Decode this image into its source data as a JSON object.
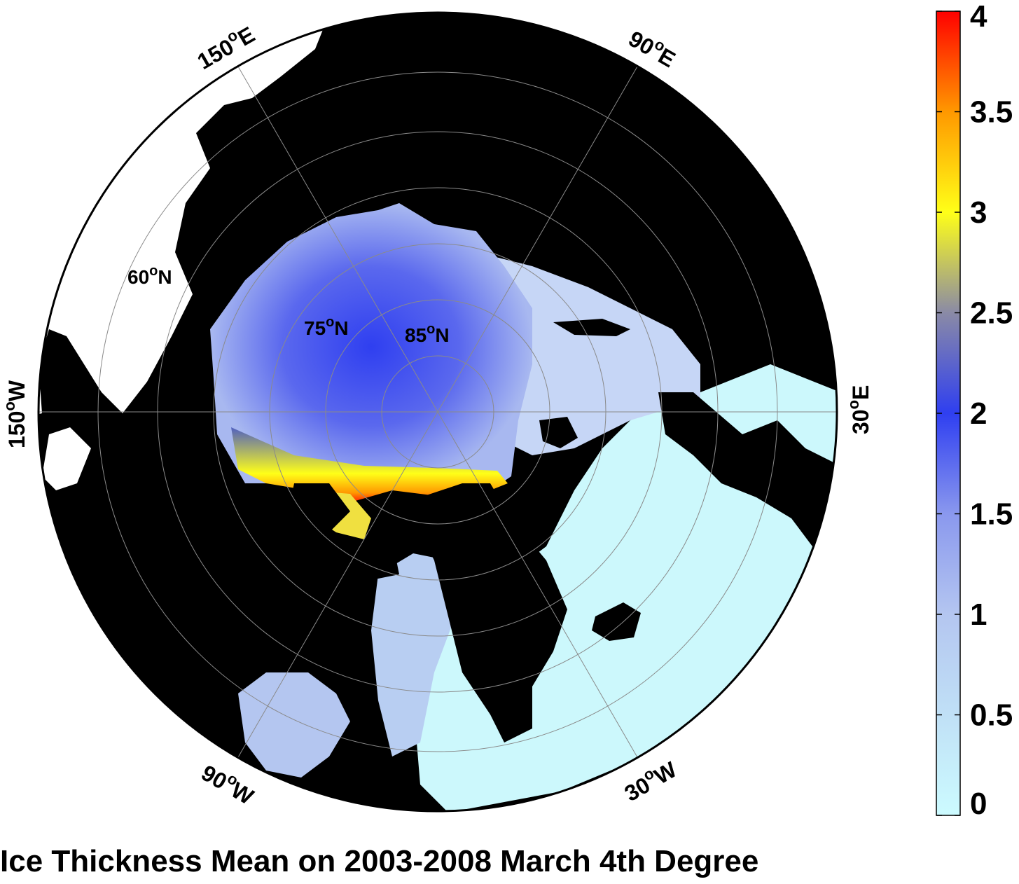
{
  "title": "Ice Thickness Mean on 2003-2008 March 4th Degree",
  "map": {
    "projection": "north polar stereographic",
    "longitude_labels": [
      {
        "id": "lon-150e",
        "text": "150",
        "sup": "o",
        "suffix": "E"
      },
      {
        "id": "lon-90e",
        "text": "90",
        "sup": "o",
        "suffix": "E"
      },
      {
        "id": "lon-30e",
        "text": "30",
        "sup": "o",
        "suffix": "E"
      },
      {
        "id": "lon-30w",
        "text": "30",
        "sup": "o",
        "suffix": "W"
      },
      {
        "id": "lon-90w",
        "text": "90",
        "sup": "o",
        "suffix": "W"
      },
      {
        "id": "lon-150w",
        "text": "150",
        "sup": "o",
        "suffix": "W"
      }
    ],
    "latitude_labels": [
      {
        "id": "lat-60n",
        "text": "60",
        "sup": "o",
        "suffix": "N"
      },
      {
        "id": "lat-75n",
        "text": "75",
        "sup": "o",
        "suffix": "N"
      },
      {
        "id": "lat-85n",
        "text": "85",
        "sup": "o",
        "suffix": "N"
      }
    ],
    "colors": {
      "land": "#000000",
      "outside": "#ffffff",
      "thin_ice": "#ccf8fc",
      "thick_ice": "#ff0000",
      "grid": "#8a8a8a"
    }
  },
  "colorbar": {
    "min": 0,
    "max": 4,
    "ticks": [
      "0",
      "0.5",
      "1",
      "1.5",
      "2",
      "2.5",
      "3",
      "3.5",
      "4"
    ],
    "colormap": [
      {
        "v": 0,
        "c": "#ccfbff"
      },
      {
        "v": 0.5,
        "c": "#c0e0f6"
      },
      {
        "v": 1,
        "c": "#b4c6f0"
      },
      {
        "v": 1.5,
        "c": "#8a98ee"
      },
      {
        "v": 2,
        "c": "#2f3ff0"
      },
      {
        "v": 2.5,
        "c": "#8a8aa6"
      },
      {
        "v": 3,
        "c": "#ffff18"
      },
      {
        "v": 3.5,
        "c": "#ff9800"
      },
      {
        "v": 4,
        "c": "#ff0000"
      }
    ]
  }
}
